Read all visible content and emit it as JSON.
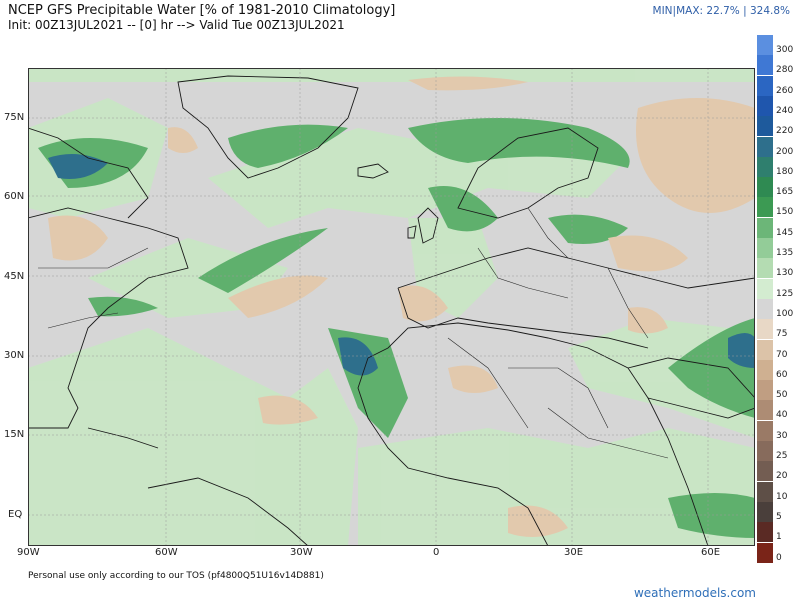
{
  "header": {
    "title": "NCEP GFS Precipitable Water [% of 1981-2010 Climatology]",
    "subtitle": "Init: 00Z13JUL2021 -- [0] hr --> Valid Tue 00Z13JUL2021",
    "minmax": "MIN|MAX: 22.7% | 324.8%"
  },
  "axes": {
    "lat_labels": [
      "75N",
      "60N",
      "45N",
      "30N",
      "15N",
      "EQ"
    ],
    "lon_labels": [
      "90W",
      "60W",
      "30W",
      "0",
      "30E",
      "60E"
    ]
  },
  "legend": {
    "levels": [
      "300",
      "280",
      "260",
      "240",
      "220",
      "200",
      "180",
      "165",
      "150",
      "145",
      "135",
      "130",
      "125",
      "100",
      "75",
      "70",
      "60",
      "50",
      "40",
      "30",
      "25",
      "20",
      "10",
      "5",
      "1",
      "0"
    ],
    "colors": [
      "#5b8fe0",
      "#3f78d4",
      "#2b66c2",
      "#1f56ad",
      "#1e5a9c",
      "#2e6f8c",
      "#2f7f6e",
      "#2f8a52",
      "#3c9a53",
      "#6cb678",
      "#93cc98",
      "#b4dcb2",
      "#d3ecd0",
      "#d6d6d6",
      "#e8d8c6",
      "#dcc3a8",
      "#cfb091",
      "#c09e82",
      "#ad8c74",
      "#9a7a66",
      "#876b5c",
      "#735d52",
      "#5e4f47",
      "#4a3f3b",
      "#5a2a24",
      "#7a2418"
    ]
  },
  "footer": {
    "note": "Personal use only according to our TOS (pf4800Q51U16v14D881)",
    "brand": "weathermodels.com"
  },
  "map": {
    "background_color": "#d6d6d6",
    "wet_color": "#3c9a53",
    "dry_color": "#e2c9ad",
    "land_outline_color": "#1a1a1a"
  }
}
